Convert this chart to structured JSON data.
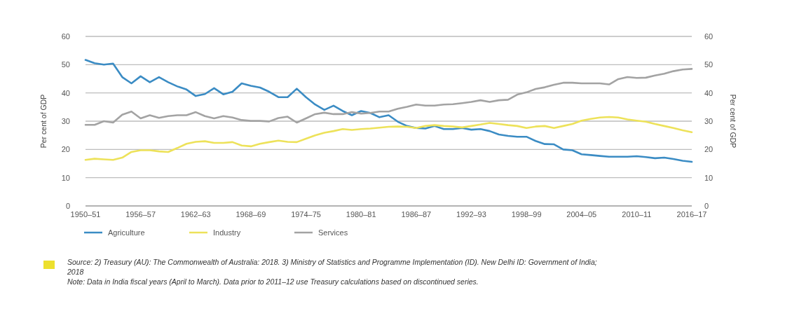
{
  "chart_data": {
    "type": "line",
    "categories": [
      "1950–51",
      null,
      null,
      null,
      null,
      null,
      "1956–57",
      null,
      null,
      null,
      null,
      null,
      "1962–63",
      null,
      null,
      null,
      null,
      null,
      "1968–69",
      null,
      null,
      null,
      null,
      null,
      "1974–75",
      null,
      null,
      null,
      null,
      null,
      "1980–81",
      null,
      null,
      null,
      null,
      null,
      "1986–87",
      null,
      null,
      null,
      null,
      null,
      "1992–93",
      null,
      null,
      null,
      null,
      null,
      "1998–99",
      null,
      null,
      null,
      null,
      null,
      "2004–05",
      null,
      null,
      null,
      null,
      null,
      "2010–11",
      null,
      null,
      null,
      null,
      null,
      "2016–17"
    ],
    "series": [
      {
        "name": "Agriculture",
        "color": "#3b8cc4",
        "values": [
          51.7,
          50.5,
          50,
          50.4,
          45.6,
          43.4,
          45.9,
          43.8,
          45.6,
          43.8,
          42.3,
          41.2,
          38.9,
          39.6,
          41.7,
          39.5,
          40.4,
          43.4,
          42.5,
          41.9,
          40.4,
          38.5,
          38.5,
          41.5,
          38.5,
          35.9,
          34,
          35.5,
          33.6,
          32.1,
          33.6,
          32.9,
          31.4,
          32.1,
          29.8,
          28.3,
          27.6,
          27.4,
          28.3,
          27.2,
          27.2,
          27.6,
          27,
          27.2,
          26.5,
          25.3,
          24.8,
          24.5,
          24.5,
          23,
          21.9,
          21.8,
          20,
          19.7,
          18.3,
          18,
          17.7,
          17.4,
          17.4,
          17.4,
          17.6,
          17.3,
          16.9,
          17.1,
          16.6,
          16,
          15.6
        ]
      },
      {
        "name": "Industry",
        "color": "#ede25a",
        "values": [
          16.3,
          16.7,
          16.5,
          16.3,
          17.1,
          19.1,
          19.7,
          19.7,
          19.3,
          19.1,
          20.5,
          22,
          22.7,
          22.9,
          22.3,
          22.3,
          22.6,
          21.4,
          21.1,
          22,
          22.6,
          23.1,
          22.7,
          22.6,
          23.8,
          25,
          25.9,
          26.5,
          27.2,
          26.9,
          27.2,
          27.4,
          27.7,
          28,
          28.1,
          28,
          27.6,
          28.3,
          28.6,
          28.3,
          28.1,
          27.8,
          28.3,
          28.8,
          29.4,
          29,
          28.6,
          28.3,
          27.6,
          28.1,
          28.3,
          27.6,
          28.3,
          29,
          30.2,
          30.8,
          31.3,
          31.5,
          31.3,
          30.6,
          30.2,
          29.8,
          29,
          28.3,
          27.6,
          26.8,
          26.1
        ]
      },
      {
        "name": "Services",
        "color": "#a3a3a3",
        "values": [
          28.7,
          28.7,
          30,
          29.5,
          32.3,
          33.4,
          31,
          32.1,
          31.2,
          31.8,
          32.1,
          32.1,
          33.2,
          31.8,
          31,
          31.8,
          31.3,
          30.4,
          30.1,
          30.1,
          29.9,
          31.1,
          31.6,
          29.5,
          31,
          32.5,
          33,
          32.5,
          32.5,
          33.2,
          32.7,
          32.9,
          33.4,
          33.4,
          34.4,
          35.1,
          35.9,
          35.5,
          35.5,
          35.9,
          36,
          36.4,
          36.8,
          37.4,
          36.8,
          37.4,
          37.6,
          39.4,
          40.2,
          41.4,
          42,
          42.9,
          43.6,
          43.6,
          43.4,
          43.4,
          43.4,
          43,
          44.9,
          45.6,
          45.3,
          45.4,
          46.2,
          46.8,
          47.7,
          48.3,
          48.5
        ]
      }
    ],
    "ylabel": "Per cent of GDP",
    "y2label": "Per cent of GDP",
    "ylim": [
      0,
      60
    ],
    "yticks": [
      0,
      10,
      20,
      30,
      40,
      50,
      60
    ],
    "y2lim": [
      0,
      60
    ],
    "y2ticks": [
      0,
      10,
      20,
      30,
      40,
      50,
      60
    ],
    "grid": "y",
    "legend": "bottom",
    "annotations": [
      "Source: 2) Treasury (AU): The Commonwealth of Australia: 2018. 3) Ministry of Statistics and Programme Implementation (ID). New Delhi ID: Government of India; 2018",
      "Note: Data in India fiscal years (April to March). Data prior to 2011–12 use Treasury calculations based on discontinued series."
    ]
  }
}
